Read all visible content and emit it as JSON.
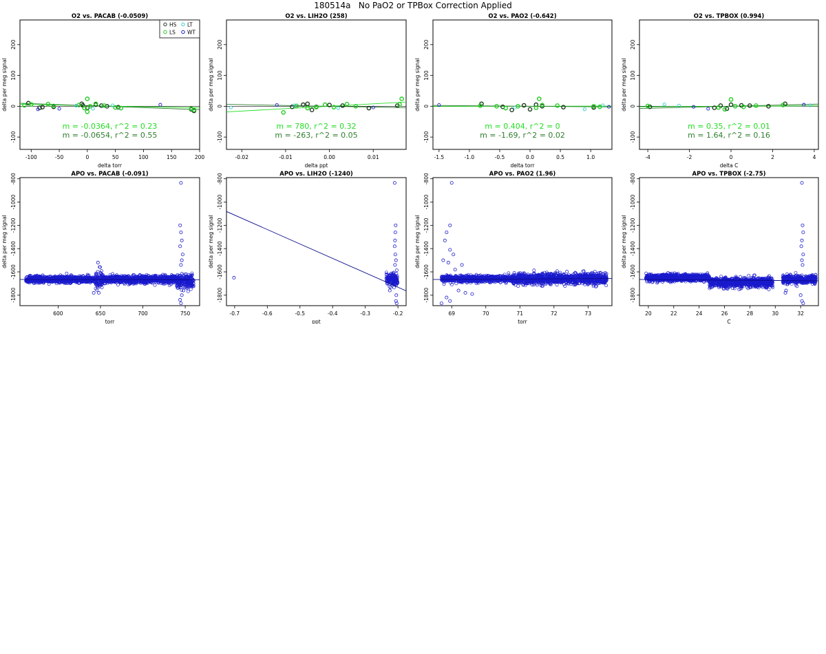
{
  "page": {
    "title": "180514a   No PaO2 or TPBox Correction Applied"
  },
  "colors": {
    "HS": "#1f3a1f",
    "LS": "#22cc22",
    "LT": "#33cccc",
    "WT": "#1a1acc",
    "fit_top": "#22dd22",
    "fit_bottom": "#2e7d2e",
    "ref_line": "#000000",
    "apo_points": "#1a1acc",
    "apo_line": "#0a0a8a"
  },
  "legend": {
    "placement": "top-right",
    "entries": [
      {
        "key": "HS",
        "label": "HS"
      },
      {
        "key": "LT",
        "label": "LT"
      },
      {
        "key": "LS",
        "label": "LS"
      },
      {
        "key": "WT",
        "label": "WT"
      }
    ]
  },
  "chart_data": [
    {
      "type": "scatter",
      "title": "O2 vs. PACAB (-0.0509)",
      "xlabel": "delta torr",
      "ylabel": "delta per meg signal",
      "xlim": [
        -120,
        200
      ],
      "ylim": [
        -140,
        280
      ],
      "xticks": [
        "-100",
        "-50",
        "0",
        "50",
        "100",
        "150",
        "200"
      ],
      "yticks": [
        "-100",
        "0",
        "100",
        "200"
      ],
      "series": [
        {
          "key": "HS",
          "name": "HS",
          "points": [
            [
              -105,
              10
            ],
            [
              -85,
              -5
            ],
            [
              -80,
              -3
            ],
            [
              -60,
              -2
            ],
            [
              -10,
              8
            ],
            [
              -8,
              3
            ],
            [
              0,
              -5
            ],
            [
              15,
              5
            ],
            [
              25,
              2
            ],
            [
              35,
              0
            ],
            [
              55,
              -3
            ],
            [
              185,
              -10
            ],
            [
              190,
              -15
            ]
          ]
        },
        {
          "key": "LS",
          "name": "LS",
          "points": [
            [
              -112,
              3
            ],
            [
              -100,
              6
            ],
            [
              -70,
              7
            ],
            [
              -60,
              1
            ],
            [
              -15,
              4
            ],
            [
              -5,
              -6
            ],
            [
              0,
              24
            ],
            [
              0,
              -18
            ],
            [
              5,
              0
            ],
            [
              15,
              8
            ],
            [
              30,
              2
            ],
            [
              50,
              -4
            ],
            [
              60,
              -6
            ],
            [
              185,
              -8
            ],
            [
              190,
              -12
            ]
          ]
        },
        {
          "key": "LT",
          "name": "LT",
          "points": [
            [
              -20,
              2
            ],
            [
              10,
              -8
            ],
            [
              45,
              3
            ]
          ]
        },
        {
          "key": "WT",
          "name": "WT",
          "points": [
            [
              -88,
              -10
            ],
            [
              -50,
              -8
            ],
            [
              130,
              5
            ]
          ]
        }
      ],
      "fits": [
        {
          "key": "fit_top",
          "slope": -0.0364,
          "intercept": 2,
          "text": "m = -0.0364, r^2 = 0.23"
        },
        {
          "key": "fit_bottom",
          "slope": -0.0654,
          "intercept": 2,
          "text": "m = -0.0654, r^2 = 0.55"
        }
      ],
      "hline": 0
    },
    {
      "type": "scatter",
      "title": "O2 vs. LIH2O (258)",
      "xlabel": "delta ppt",
      "ylabel": "delta per meg signal",
      "xlim": [
        -0.0235,
        0.0175
      ],
      "ylim": [
        -140,
        280
      ],
      "xticks": [
        "-0.02",
        "-0.01",
        "0.00",
        "0.01"
      ],
      "yticks": [
        "-100",
        "0",
        "100",
        "200"
      ],
      "series": [
        {
          "key": "HS",
          "name": "HS",
          "points": [
            [
              -0.0085,
              -2
            ],
            [
              -0.006,
              5
            ],
            [
              -0.005,
              8
            ],
            [
              -0.004,
              -12
            ],
            [
              -0.003,
              -2
            ],
            [
              0.0,
              4
            ],
            [
              0.003,
              2
            ],
            [
              0.009,
              -6
            ],
            [
              0.0155,
              2
            ]
          ]
        },
        {
          "key": "LS",
          "name": "LS",
          "points": [
            [
              -0.0105,
              -20
            ],
            [
              -0.0075,
              1
            ],
            [
              -0.005,
              -6
            ],
            [
              -0.003,
              -3
            ],
            [
              -0.001,
              5
            ],
            [
              0.001,
              -3
            ],
            [
              0.004,
              7
            ],
            [
              0.006,
              0
            ],
            [
              0.0165,
              24
            ],
            [
              0.016,
              6
            ]
          ]
        },
        {
          "key": "LT",
          "name": "LT",
          "points": [
            [
              -0.0225,
              -4
            ],
            [
              -0.008,
              3
            ],
            [
              0.002,
              -6
            ]
          ]
        },
        {
          "key": "WT",
          "name": "WT",
          "points": [
            [
              -0.012,
              4
            ],
            [
              0.01,
              -4
            ]
          ]
        }
      ],
      "fits": [
        {
          "key": "fit_top",
          "slope": 780,
          "intercept": 0,
          "text": "m = 780, r^2 = 0.32"
        },
        {
          "key": "fit_bottom",
          "slope": -263,
          "intercept": 0,
          "text": "m = -263, r^2 = 0.05"
        }
      ],
      "hline": 0
    },
    {
      "type": "scatter",
      "title": "O2 vs. PAO2 (-0.642)",
      "xlabel": "delta torr",
      "ylabel": "delta per meg signal",
      "xlim": [
        -1.6,
        1.35
      ],
      "ylim": [
        -140,
        280
      ],
      "xticks": [
        "-1.5",
        "-1.0",
        "-0.5",
        "0.0",
        "0.5",
        "1.0"
      ],
      "yticks": [
        "-100",
        "0",
        "100",
        "200"
      ],
      "series": [
        {
          "key": "HS",
          "name": "HS",
          "points": [
            [
              -0.8,
              8
            ],
            [
              -0.45,
              -2
            ],
            [
              -0.3,
              -12
            ],
            [
              -0.1,
              3
            ],
            [
              0.0,
              -10
            ],
            [
              0.1,
              5
            ],
            [
              0.2,
              0
            ],
            [
              0.55,
              -3
            ],
            [
              1.05,
              -4
            ]
          ]
        },
        {
          "key": "LS",
          "name": "LS",
          "points": [
            [
              -0.82,
              2
            ],
            [
              -0.55,
              0
            ],
            [
              -0.4,
              -6
            ],
            [
              -0.2,
              0
            ],
            [
              0.1,
              -5
            ],
            [
              0.15,
              24
            ],
            [
              0.2,
              4
            ],
            [
              0.45,
              2
            ],
            [
              1.05,
              0
            ],
            [
              1.15,
              -2
            ]
          ]
        },
        {
          "key": "LT",
          "name": "LT",
          "points": [
            [
              -0.25,
              -4
            ],
            [
              0.9,
              -10
            ],
            [
              1.2,
              3
            ]
          ]
        },
        {
          "key": "WT",
          "name": "WT",
          "points": [
            [
              -1.5,
              4
            ],
            [
              1.3,
              -2
            ]
          ]
        }
      ],
      "fits": [
        {
          "key": "fit_top",
          "slope": 0.404,
          "intercept": 0,
          "text": "m = 0.404, r^2 = 0"
        },
        {
          "key": "fit_bottom",
          "slope": -1.69,
          "intercept": 0,
          "text": "m = -1.69, r^2 = 0.02"
        }
      ],
      "hline": 0
    },
    {
      "type": "scatter",
      "title": "O2 vs. TPBOX (0.994)",
      "xlabel": "delta C",
      "ylabel": "delta per meg signal",
      "xlim": [
        -4.4,
        4.2
      ],
      "ylim": [
        -140,
        280
      ],
      "xticks": [
        "-4",
        "-2",
        "0",
        "2",
        "4"
      ],
      "yticks": [
        "-100",
        "0",
        "100",
        "200"
      ],
      "series": [
        {
          "key": "HS",
          "name": "HS",
          "points": [
            [
              -3.9,
              -2
            ],
            [
              -0.8,
              -5
            ],
            [
              -0.5,
              2
            ],
            [
              -0.2,
              -8
            ],
            [
              0.0,
              5
            ],
            [
              0.5,
              3
            ],
            [
              0.9,
              2
            ],
            [
              1.8,
              0
            ],
            [
              2.6,
              8
            ]
          ]
        },
        {
          "key": "LS",
          "name": "LS",
          "points": [
            [
              -4.0,
              1
            ],
            [
              -0.6,
              -4
            ],
            [
              -0.3,
              -10
            ],
            [
              0.0,
              22
            ],
            [
              0.2,
              0
            ],
            [
              0.6,
              -2
            ],
            [
              1.2,
              2
            ],
            [
              2.5,
              4
            ]
          ]
        },
        {
          "key": "LT",
          "name": "LT",
          "points": [
            [
              -3.2,
              6
            ],
            [
              -2.5,
              2
            ],
            [
              3.8,
              3
            ]
          ]
        },
        {
          "key": "WT",
          "name": "WT",
          "points": [
            [
              -1.8,
              -2
            ],
            [
              -1.1,
              -8
            ],
            [
              3.5,
              5
            ]
          ]
        }
      ],
      "fits": [
        {
          "key": "fit_top",
          "slope": 0.35,
          "intercept": 0,
          "text": "m = 0.35, r^2 = 0.01"
        },
        {
          "key": "fit_bottom",
          "slope": 1.64,
          "intercept": 0,
          "text": "m = 1.64, r^2 = 0.16"
        }
      ],
      "hline": 0
    },
    {
      "type": "scatter",
      "title": "APO vs. PACAB (-0.091)",
      "xlabel": "torr",
      "ylabel": "delta per meg signal",
      "xlim": [
        555,
        767
      ],
      "ylim": [
        -1890,
        -790
      ],
      "xticks": [
        "600",
        "650",
        "700",
        "750"
      ],
      "yticks": [
        "-800",
        "-1000",
        "-1200",
        "-1400",
        "-1600",
        "-1800"
      ],
      "bands": [
        {
          "x": [
            562,
            644
          ],
          "center": -1665,
          "spread": 22
        },
        {
          "x": [
            644,
            652
          ],
          "center": -1670,
          "spread": 60
        },
        {
          "x": [
            652,
            740
          ],
          "center": -1665,
          "spread": 26
        },
        {
          "x": [
            740,
            760
          ],
          "center": -1680,
          "spread": 45
        }
      ],
      "outliers": [
        [
          745,
          -835
        ],
        [
          744,
          -1200
        ],
        [
          745,
          -1260
        ],
        [
          746,
          -1330
        ],
        [
          744,
          -1380
        ],
        [
          747,
          -1450
        ],
        [
          746,
          -1500
        ],
        [
          745,
          -1540
        ],
        [
          647,
          -1520
        ],
        [
          648,
          -1780
        ],
        [
          744,
          -1840
        ],
        [
          745,
          -1870
        ],
        [
          746,
          -1800
        ],
        [
          748,
          -1760
        ],
        [
          642,
          -1780
        ]
      ],
      "line": {
        "slope": -0.091,
        "intercept": -1610,
        "text": ""
      }
    },
    {
      "type": "scatter",
      "title": "APO vs. LIH2O (-1240)",
      "xlabel": "ppt",
      "ylabel": "delta per meg signal",
      "xlim": [
        -0.725,
        -0.175
      ],
      "ylim": [
        -1890,
        -790
      ],
      "xticks": [
        "-0.7",
        "-0.6",
        "-0.5",
        "-0.4",
        "-0.3",
        "-0.2"
      ],
      "yticks": [
        "-800",
        "-1000",
        "-1200",
        "-1400",
        "-1600",
        "-1800"
      ],
      "bands": [
        {
          "x": [
            -0.236,
            -0.2
          ],
          "center": -1665,
          "spread": 45
        }
      ],
      "outliers": [
        [
          -0.702,
          -1650
        ],
        [
          -0.21,
          -835
        ],
        [
          -0.207,
          -1200
        ],
        [
          -0.208,
          -1260
        ],
        [
          -0.209,
          -1330
        ],
        [
          -0.21,
          -1380
        ],
        [
          -0.208,
          -1450
        ],
        [
          -0.206,
          -1500
        ],
        [
          -0.209,
          -1540
        ],
        [
          -0.205,
          -1800
        ],
        [
          -0.206,
          -1850
        ],
        [
          -0.204,
          -1870
        ],
        [
          -0.225,
          -1760
        ]
      ],
      "line": {
        "slope": -1240,
        "intercept": -1980,
        "text": ""
      }
    },
    {
      "type": "scatter",
      "title": "APO vs. PAO2 (1.96)",
      "xlabel": "torr",
      "ylabel": "delta per meg signal",
      "xlim": [
        68.45,
        73.7
      ],
      "ylim": [
        -1890,
        -790
      ],
      "xticks": [
        "69",
        "70",
        "71",
        "72",
        "73"
      ],
      "yticks": [
        "-800",
        "-1000",
        "-1200",
        "-1400",
        "-1600",
        "-1800"
      ],
      "bands": [
        {
          "x": [
            68.7,
            70.8
          ],
          "center": -1660,
          "spread": 22
        },
        {
          "x": [
            70.8,
            73.55
          ],
          "center": -1660,
          "spread": 38
        }
      ],
      "outliers": [
        [
          69.0,
          -835
        ],
        [
          68.95,
          -1200
        ],
        [
          68.85,
          -1260
        ],
        [
          68.8,
          -1330
        ],
        [
          68.95,
          -1410
        ],
        [
          69.05,
          -1450
        ],
        [
          68.75,
          -1500
        ],
        [
          68.9,
          -1520
        ],
        [
          69.3,
          -1540
        ],
        [
          69.1,
          -1580
        ],
        [
          68.85,
          -1820
        ],
        [
          68.95,
          -1850
        ],
        [
          68.7,
          -1870
        ],
        [
          69.4,
          -1780
        ],
        [
          69.2,
          -1760
        ],
        [
          69.6,
          -1790
        ]
      ],
      "line": {
        "slope": 1.96,
        "intercept": -1816,
        "text": ""
      }
    },
    {
      "type": "scatter",
      "title": "APO vs. TPBOX (-2.75)",
      "xlabel": "C",
      "ylabel": "delta per meg signal",
      "xlim": [
        19.3,
        33.4
      ],
      "ylim": [
        -1890,
        -790
      ],
      "xticks": [
        "20",
        "22",
        "24",
        "26",
        "28",
        "30",
        "32"
      ],
      "yticks": [
        "-800",
        "-1000",
        "-1200",
        "-1400",
        "-1600",
        "-1800"
      ],
      "bands": [
        {
          "x": [
            19.8,
            24.8
          ],
          "center": -1650,
          "spread": 24
        },
        {
          "x": [
            24.8,
            29.8
          ],
          "center": -1690,
          "spread": 35
        },
        {
          "x": [
            30.6,
            33.2
          ],
          "center": -1665,
          "spread": 30
        }
      ],
      "outliers": [
        [
          32.1,
          -835
        ],
        [
          32.15,
          -1200
        ],
        [
          32.2,
          -1260
        ],
        [
          32.1,
          -1330
        ],
        [
          32.05,
          -1380
        ],
        [
          32.2,
          -1450
        ],
        [
          32.1,
          -1500
        ],
        [
          32.15,
          -1540
        ],
        [
          30.8,
          -1780
        ],
        [
          32.0,
          -1800
        ],
        [
          32.1,
          -1850
        ],
        [
          32.2,
          -1870
        ],
        [
          30.85,
          -1760
        ]
      ],
      "line": {
        "slope": -2.75,
        "intercept": -1600,
        "text": ""
      }
    }
  ]
}
